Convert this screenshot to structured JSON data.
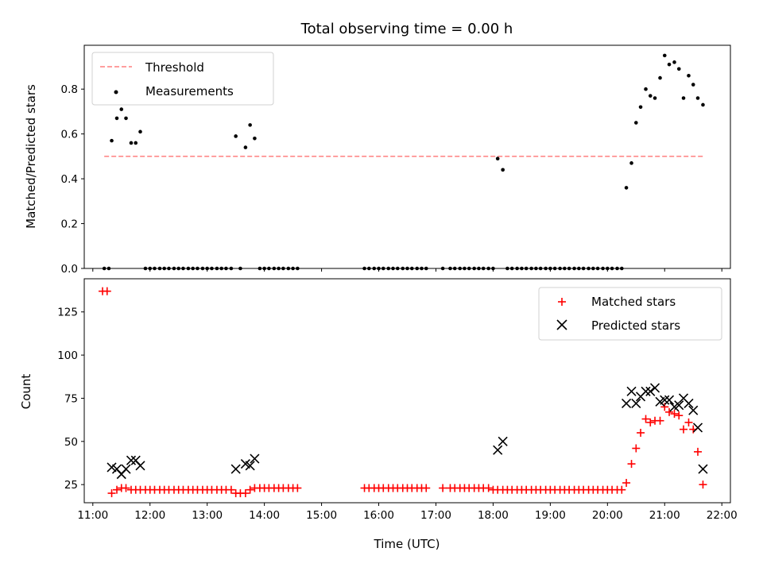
{
  "chart_data": [
    {
      "type": "scatter",
      "title": "Total observing time = 0.00 h",
      "xlabel": "",
      "ylabel": "Matched/Predicted stars",
      "xlim": [
        10.85,
        22.15
      ],
      "ylim": [
        0.0,
        0.9956
      ],
      "yticks": [
        0.0,
        0.2,
        0.4,
        0.6,
        0.8
      ],
      "ytick_labels": [
        "0.0",
        "0.2",
        "0.4",
        "0.6",
        "0.8"
      ],
      "xticks": [
        11,
        12,
        13,
        14,
        15,
        16,
        17,
        18,
        19,
        20,
        21,
        22
      ],
      "legend": {
        "position": "upper-left",
        "entries": [
          "Threshold",
          "Measurements"
        ]
      },
      "threshold": {
        "name": "Threshold",
        "value": 0.5,
        "x_range": [
          11.2,
          21.67
        ],
        "color": "#ff7f7f"
      },
      "series": [
        {
          "name": "Measurements",
          "color": "#000000",
          "x": [
            11.2,
            11.28,
            11.33,
            11.42,
            11.5,
            11.58,
            11.67,
            11.75,
            11.83,
            11.92,
            12.0,
            12.08,
            12.17,
            12.25,
            12.33,
            12.42,
            12.5,
            12.58,
            12.67,
            12.75,
            12.83,
            12.92,
            13.0,
            13.08,
            13.17,
            13.25,
            13.33,
            13.42,
            13.5,
            13.58,
            13.67,
            13.75,
            13.83,
            13.92,
            14.0,
            14.08,
            14.17,
            14.25,
            14.33,
            14.42,
            14.5,
            14.58,
            15.75,
            15.83,
            15.92,
            16.0,
            16.08,
            16.17,
            16.25,
            16.33,
            16.42,
            16.5,
            16.58,
            16.67,
            16.75,
            16.83,
            17.12,
            17.25,
            17.33,
            17.42,
            17.5,
            17.58,
            17.67,
            17.75,
            17.83,
            17.92,
            18.0,
            18.08,
            18.17,
            18.25,
            18.33,
            18.42,
            18.5,
            18.58,
            18.67,
            18.75,
            18.83,
            18.92,
            19.0,
            19.08,
            19.17,
            19.25,
            19.33,
            19.42,
            19.5,
            19.58,
            19.67,
            19.75,
            19.83,
            19.92,
            20.0,
            20.08,
            20.17,
            20.25,
            20.33,
            20.42,
            20.5,
            20.58,
            20.67,
            20.75,
            20.83,
            20.92,
            21.0,
            21.08,
            21.17,
            21.25,
            21.33,
            21.42,
            21.5,
            21.58,
            21.67
          ],
          "y": [
            0.0,
            0.0,
            0.57,
            0.67,
            0.71,
            0.67,
            0.56,
            0.56,
            0.61,
            0.0,
            0.0,
            0.0,
            0.0,
            0.0,
            0.0,
            0.0,
            0.0,
            0.0,
            0.0,
            0.0,
            0.0,
            0.0,
            0.0,
            0.0,
            0.0,
            0.0,
            0.0,
            0.0,
            0.59,
            0.0,
            0.54,
            0.64,
            0.58,
            0.0,
            0.0,
            0.0,
            0.0,
            0.0,
            0.0,
            0.0,
            0.0,
            0.0,
            0.0,
            0.0,
            0.0,
            0.0,
            0.0,
            0.0,
            0.0,
            0.0,
            0.0,
            0.0,
            0.0,
            0.0,
            0.0,
            0.0,
            0.0,
            0.0,
            0.0,
            0.0,
            0.0,
            0.0,
            0.0,
            0.0,
            0.0,
            0.0,
            0.0,
            0.49,
            0.44,
            0.0,
            0.0,
            0.0,
            0.0,
            0.0,
            0.0,
            0.0,
            0.0,
            0.0,
            0.0,
            0.0,
            0.0,
            0.0,
            0.0,
            0.0,
            0.0,
            0.0,
            0.0,
            0.0,
            0.0,
            0.0,
            0.0,
            0.0,
            0.0,
            0.0,
            0.36,
            0.47,
            0.65,
            0.72,
            0.8,
            0.77,
            0.76,
            0.85,
            0.95,
            0.91,
            0.92,
            0.89,
            0.76,
            0.86,
            0.82,
            0.76,
            0.73
          ]
        }
      ]
    },
    {
      "type": "scatter",
      "title": "",
      "xlabel": "Time (UTC)",
      "ylabel": "Count",
      "xlim": [
        10.85,
        22.15
      ],
      "ylim": [
        14.5,
        144.2
      ],
      "yticks": [
        25,
        50,
        75,
        100,
        125
      ],
      "ytick_labels": [
        "25",
        "50",
        "75",
        "100",
        "125"
      ],
      "xticks": [
        11,
        12,
        13,
        14,
        15,
        16,
        17,
        18,
        19,
        20,
        21,
        22
      ],
      "xtick_labels": [
        "11:00",
        "12:00",
        "13:00",
        "14:00",
        "15:00",
        "16:00",
        "17:00",
        "18:00",
        "19:00",
        "20:00",
        "21:00",
        "22:00"
      ],
      "legend": {
        "position": "upper-right",
        "entries": [
          "Matched stars",
          "Predicted stars"
        ]
      },
      "series": [
        {
          "name": "Matched stars",
          "color": "#ff0000",
          "marker": "plus",
          "x": [
            11.17,
            11.25,
            11.33,
            11.42,
            11.5,
            11.58,
            11.67,
            11.75,
            11.83,
            11.92,
            12.0,
            12.08,
            12.17,
            12.25,
            12.33,
            12.42,
            12.5,
            12.58,
            12.67,
            12.75,
            12.83,
            12.92,
            13.0,
            13.08,
            13.17,
            13.25,
            13.33,
            13.42,
            13.5,
            13.58,
            13.67,
            13.75,
            13.83,
            13.92,
            14.0,
            14.08,
            14.17,
            14.25,
            14.33,
            14.42,
            14.5,
            14.58,
            15.75,
            15.83,
            15.92,
            16.0,
            16.08,
            16.17,
            16.25,
            16.33,
            16.42,
            16.5,
            16.58,
            16.67,
            16.75,
            16.83,
            17.12,
            17.25,
            17.33,
            17.42,
            17.5,
            17.58,
            17.67,
            17.75,
            17.83,
            17.92,
            18.0,
            18.08,
            18.17,
            18.25,
            18.33,
            18.42,
            18.5,
            18.58,
            18.67,
            18.75,
            18.83,
            18.92,
            19.0,
            19.08,
            19.17,
            19.25,
            19.33,
            19.42,
            19.5,
            19.58,
            19.67,
            19.75,
            19.83,
            19.92,
            20.0,
            20.08,
            20.17,
            20.25,
            20.33,
            20.42,
            20.5,
            20.58,
            20.67,
            20.75,
            20.83,
            20.92,
            21.0,
            21.08,
            21.17,
            21.25,
            21.33,
            21.42,
            21.5,
            21.58,
            21.67
          ],
          "y": [
            137,
            137,
            20,
            22,
            23,
            23,
            22,
            22,
            22,
            22,
            22,
            22,
            22,
            22,
            22,
            22,
            22,
            22,
            22,
            22,
            22,
            22,
            22,
            22,
            22,
            22,
            22,
            22,
            20,
            20,
            20,
            22,
            23,
            23,
            23,
            23,
            23,
            23,
            23,
            23,
            23,
            23,
            23,
            23,
            23,
            23,
            23,
            23,
            23,
            23,
            23,
            23,
            23,
            23,
            23,
            23,
            23,
            23,
            23,
            23,
            23,
            23,
            23,
            23,
            23,
            23,
            22,
            22,
            22,
            22,
            22,
            22,
            22,
            22,
            22,
            22,
            22,
            22,
            22,
            22,
            22,
            22,
            22,
            22,
            22,
            22,
            22,
            22,
            22,
            22,
            22,
            22,
            22,
            22,
            26,
            37,
            46,
            55,
            63,
            61,
            62,
            62,
            70,
            67,
            66,
            65,
            57,
            61,
            57,
            44,
            25
          ]
        },
        {
          "name": "Predicted stars",
          "color": "#000000",
          "marker": "x",
          "x": [
            11.33,
            11.42,
            11.5,
            11.58,
            11.67,
            11.75,
            11.83,
            13.5,
            13.67,
            13.75,
            13.83,
            18.08,
            18.17,
            20.33,
            20.42,
            20.5,
            20.58,
            20.67,
            20.75,
            20.83,
            20.92,
            21.0,
            21.08,
            21.17,
            21.25,
            21.33,
            21.42,
            21.5,
            21.58,
            21.67
          ],
          "y": [
            35,
            34,
            31,
            34,
            39,
            39,
            36,
            34,
            37,
            36,
            40,
            45,
            50,
            72,
            79,
            72,
            76,
            79,
            79,
            81,
            73,
            74,
            74,
            70,
            71,
            75,
            72,
            68,
            58,
            34
          ]
        }
      ]
    }
  ]
}
